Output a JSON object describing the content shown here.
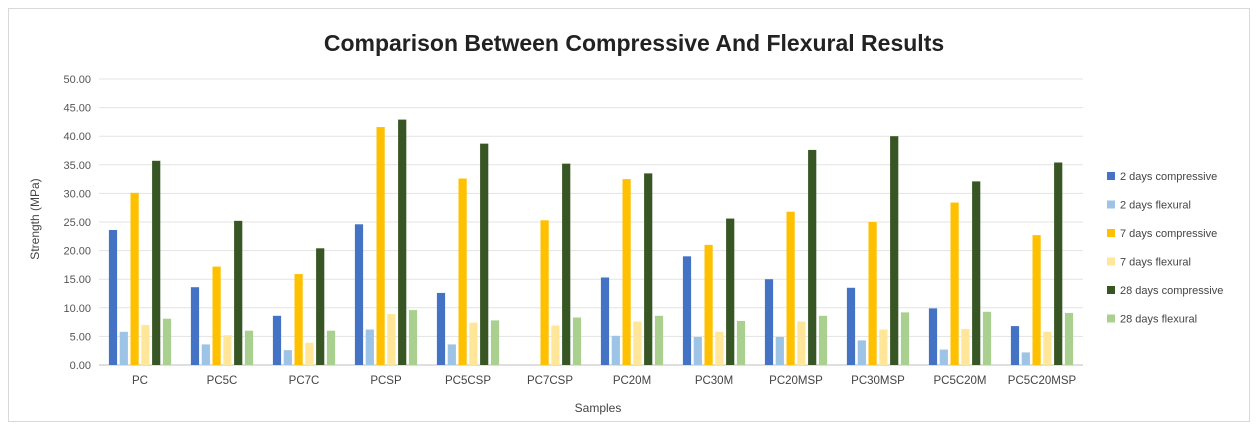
{
  "chart_data": {
    "type": "bar",
    "title": "Comparison Between Compressive And Flexural Results",
    "xlabel": "Samples",
    "ylabel": "Strength (MPa)",
    "ylim": [
      0,
      50
    ],
    "yticks": [
      "0.00",
      "5.00",
      "10.00",
      "15.00",
      "20.00",
      "25.00",
      "30.00",
      "35.00",
      "40.00",
      "45.00",
      "50.00"
    ],
    "grid": true,
    "legend_position": "right",
    "categories": [
      "PC",
      "PC5C",
      "PC7C",
      "PCSP",
      "PC5CSP",
      "PC7CSP",
      "PC20M",
      "PC30M",
      "PC20MSP",
      "PC30MSP",
      "PC5C20M",
      "PC5C20MSP"
    ],
    "series": [
      {
        "name": "2 days compressive",
        "color": "#4472c4",
        "values": [
          23.6,
          13.6,
          8.6,
          24.6,
          12.6,
          0,
          15.3,
          19.0,
          15.0,
          13.5,
          9.9,
          6.8
        ]
      },
      {
        "name": "2 days flexural",
        "color": "#9dc3e6",
        "values": [
          5.8,
          3.6,
          2.6,
          6.2,
          3.6,
          0,
          5.1,
          4.9,
          4.9,
          4.3,
          2.7,
          2.2
        ]
      },
      {
        "name": "7 days compressive",
        "color": "#ffc000",
        "values": [
          30.1,
          17.2,
          15.9,
          41.6,
          32.6,
          25.3,
          32.5,
          21.0,
          26.8,
          25.0,
          28.4,
          22.7
        ]
      },
      {
        "name": "7 days flexural",
        "color": "#ffe699",
        "values": [
          7.0,
          5.2,
          3.9,
          8.9,
          7.4,
          6.9,
          7.6,
          5.8,
          7.6,
          6.2,
          6.3,
          5.8
        ]
      },
      {
        "name": "28 days compressive",
        "color": "#375623",
        "values": [
          35.7,
          25.2,
          20.4,
          42.9,
          38.7,
          35.2,
          33.5,
          25.6,
          37.6,
          40.0,
          32.1,
          35.4
        ]
      },
      {
        "name": "28 days flexural",
        "color": "#a9d08e",
        "values": [
          8.1,
          6.0,
          6.0,
          9.6,
          7.8,
          8.3,
          8.6,
          7.7,
          8.6,
          9.2,
          9.3,
          9.1
        ]
      }
    ]
  }
}
